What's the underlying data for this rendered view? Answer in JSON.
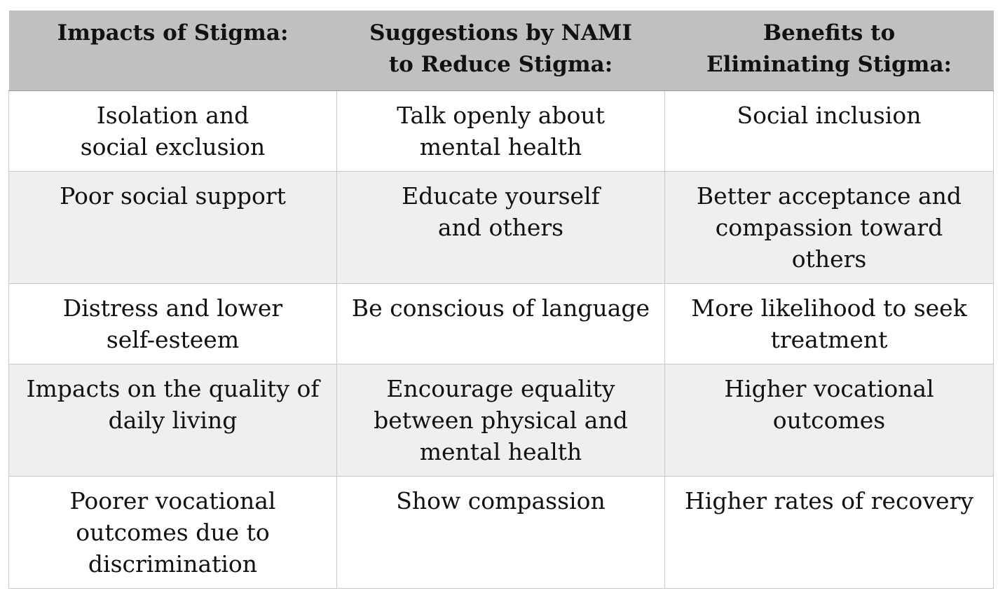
{
  "table": {
    "headers": [
      "Impacts of Stigma:",
      "Suggestions by NAMI\nto Reduce Stigma:",
      "Benefits to\nEliminating Stigma:"
    ],
    "rows": [
      [
        "Isolation and\nsocial exclusion",
        "Talk openly about\nmental health",
        "Social inclusion"
      ],
      [
        "Poor social support",
        "Educate yourself\nand others",
        "Better acceptance and\ncompassion toward\nothers"
      ],
      [
        "Distress and lower\nself-esteem",
        "Be conscious of language",
        "More likelihood to seek\ntreatment"
      ],
      [
        "Impacts on the quality of\ndaily living",
        "Encourage equality\nbetween physical and\nmental health",
        "Higher vocational\noutcomes"
      ],
      [
        "Poorer vocational\noutcomes due to\ndiscrimination",
        "Show compassion",
        "Higher rates of recovery"
      ]
    ]
  },
  "colors": {
    "header_bg": "#bfc1c0",
    "row_alt_bg": "#efefef",
    "row_bg": "#ffffff",
    "border": "#c9c9c9"
  }
}
